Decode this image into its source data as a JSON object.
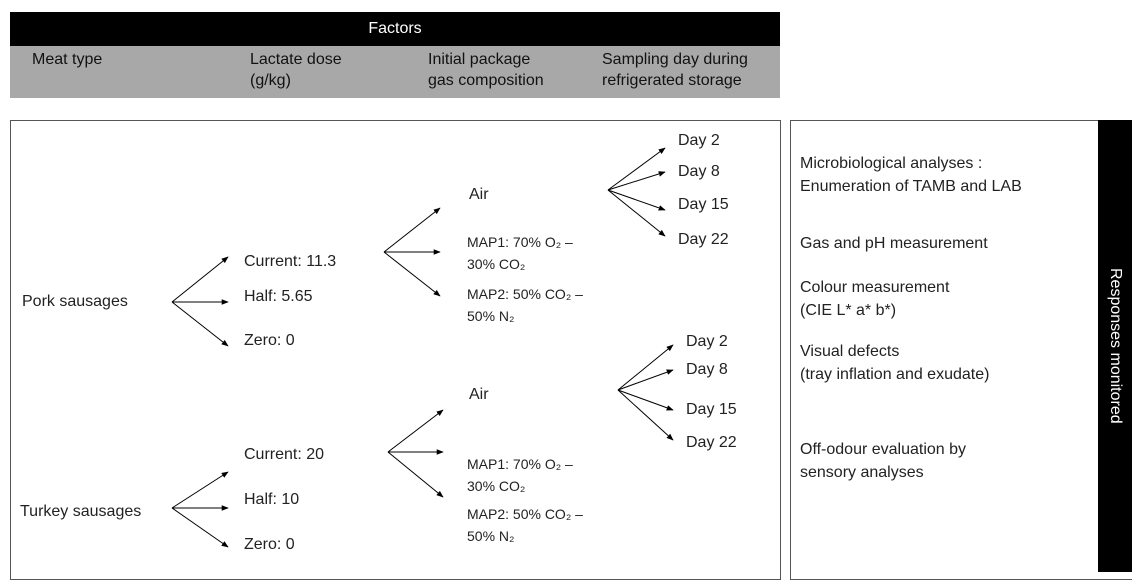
{
  "header": {
    "title": "Factors"
  },
  "columns": [
    [
      "Meat type"
    ],
    [
      "Lactate dose",
      "(g/kg)"
    ],
    [
      "Initial package",
      "gas composition"
    ],
    [
      "Sampling day during",
      "refrigerated storage"
    ]
  ],
  "groups": [
    {
      "meat": "Pork sausages",
      "doses": [
        "Current: 11.3",
        "Half: 5.65",
        "Zero: 0"
      ],
      "gases": [
        [
          "Air"
        ],
        [
          "MAP1: 70% O₂ –",
          "30% CO₂"
        ],
        [
          "MAP2: 50% CO₂ –",
          "50% N₂"
        ]
      ],
      "days": [
        "Day 2",
        "Day 8",
        "Day 15",
        "Day 22"
      ]
    },
    {
      "meat": "Turkey sausages",
      "doses": [
        "Current: 20",
        "Half: 10",
        "Zero: 0"
      ],
      "gases": [
        [
          "Air"
        ],
        [
          "MAP1: 70% O₂ –",
          "30% CO₂"
        ],
        [
          "MAP2: 50% CO₂ –",
          "50% N₂"
        ]
      ],
      "days": [
        "Day 2",
        "Day 8",
        "Day 15",
        "Day 22"
      ]
    }
  ],
  "responses": {
    "title": "Responses monitored",
    "items": [
      [
        "Microbiological analyses :",
        "Enumeration of TAMB and LAB"
      ],
      [
        "Gas and pH measurement"
      ],
      [
        "Colour measurement",
        " (CIE L* a* b*)"
      ],
      [
        "Visual defects",
        "(tray inflation and exudate)"
      ],
      [
        "Off-odour evaluation by",
        "sensory analyses"
      ]
    ]
  }
}
